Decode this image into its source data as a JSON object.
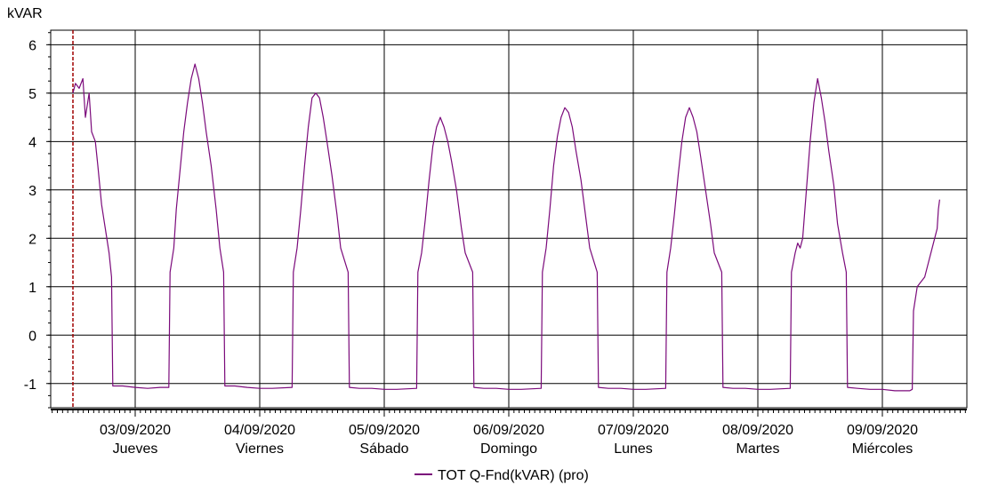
{
  "chart_data": {
    "type": "line",
    "ylabel": "kVAR",
    "ylim": [
      -1.5,
      6.3
    ],
    "y_ticks": [
      "6",
      "5",
      "4",
      "3",
      "2",
      "1",
      "0",
      "-1"
    ],
    "x_ticks": [
      {
        "date": "03/09/2020",
        "day": "Jueves"
      },
      {
        "date": "04/09/2020",
        "day": "Viernes"
      },
      {
        "date": "05/09/2020",
        "day": "Sábado"
      },
      {
        "date": "06/09/2020",
        "day": "Domingo"
      },
      {
        "date": "07/09/2020",
        "day": "Lunes"
      },
      {
        "date": "08/09/2020",
        "day": "Martes"
      },
      {
        "date": "09/09/2020",
        "day": "Miércoles"
      }
    ],
    "grid": true,
    "legend": "bottom",
    "series": [
      {
        "name": "TOT Q-Fnd(kVAR) (pro)",
        "color": "#7b0a7b",
        "x_units": "days from 03/09/2020",
        "points": [
          [
            -0.5,
            5.0
          ],
          [
            -0.48,
            5.2
          ],
          [
            -0.45,
            5.1
          ],
          [
            -0.42,
            5.3
          ],
          [
            -0.4,
            4.5
          ],
          [
            -0.37,
            5.0
          ],
          [
            -0.35,
            4.2
          ],
          [
            -0.32,
            4.0
          ],
          [
            -0.3,
            3.5
          ],
          [
            -0.27,
            2.7
          ],
          [
            -0.24,
            2.2
          ],
          [
            -0.21,
            1.7
          ],
          [
            -0.19,
            1.2
          ],
          [
            -0.18,
            -1.05
          ],
          [
            -0.1,
            -1.05
          ],
          [
            0.0,
            -1.08
          ],
          [
            0.1,
            -1.1
          ],
          [
            0.2,
            -1.08
          ],
          [
            0.27,
            -1.08
          ],
          [
            0.28,
            1.3
          ],
          [
            0.31,
            1.8
          ],
          [
            0.33,
            2.6
          ],
          [
            0.36,
            3.4
          ],
          [
            0.39,
            4.2
          ],
          [
            0.42,
            4.8
          ],
          [
            0.45,
            5.3
          ],
          [
            0.48,
            5.6
          ],
          [
            0.51,
            5.3
          ],
          [
            0.54,
            4.8
          ],
          [
            0.57,
            4.2
          ],
          [
            0.61,
            3.5
          ],
          [
            0.65,
            2.6
          ],
          [
            0.68,
            1.8
          ],
          [
            0.71,
            1.3
          ],
          [
            0.72,
            -1.05
          ],
          [
            0.8,
            -1.05
          ],
          [
            0.9,
            -1.08
          ],
          [
            1.0,
            -1.1
          ],
          [
            1.1,
            -1.1
          ],
          [
            1.26,
            -1.08
          ],
          [
            1.27,
            1.3
          ],
          [
            1.3,
            1.8
          ],
          [
            1.33,
            2.6
          ],
          [
            1.36,
            3.5
          ],
          [
            1.39,
            4.3
          ],
          [
            1.42,
            4.9
          ],
          [
            1.45,
            5.0
          ],
          [
            1.48,
            4.9
          ],
          [
            1.51,
            4.5
          ],
          [
            1.54,
            4.0
          ],
          [
            1.58,
            3.3
          ],
          [
            1.62,
            2.5
          ],
          [
            1.65,
            1.8
          ],
          [
            1.71,
            1.3
          ],
          [
            1.72,
            -1.08
          ],
          [
            1.8,
            -1.1
          ],
          [
            1.9,
            -1.1
          ],
          [
            2.0,
            -1.12
          ],
          [
            2.1,
            -1.12
          ],
          [
            2.26,
            -1.1
          ],
          [
            2.27,
            1.3
          ],
          [
            2.3,
            1.7
          ],
          [
            2.33,
            2.4
          ],
          [
            2.36,
            3.2
          ],
          [
            2.39,
            3.9
          ],
          [
            2.42,
            4.3
          ],
          [
            2.45,
            4.5
          ],
          [
            2.48,
            4.3
          ],
          [
            2.51,
            4.0
          ],
          [
            2.54,
            3.6
          ],
          [
            2.58,
            3.0
          ],
          [
            2.62,
            2.2
          ],
          [
            2.65,
            1.7
          ],
          [
            2.71,
            1.3
          ],
          [
            2.72,
            -1.08
          ],
          [
            2.8,
            -1.1
          ],
          [
            2.9,
            -1.1
          ],
          [
            3.0,
            -1.12
          ],
          [
            3.1,
            -1.12
          ],
          [
            3.26,
            -1.1
          ],
          [
            3.27,
            1.3
          ],
          [
            3.3,
            1.8
          ],
          [
            3.33,
            2.6
          ],
          [
            3.36,
            3.5
          ],
          [
            3.39,
            4.1
          ],
          [
            3.42,
            4.5
          ],
          [
            3.45,
            4.7
          ],
          [
            3.48,
            4.6
          ],
          [
            3.51,
            4.3
          ],
          [
            3.54,
            3.8
          ],
          [
            3.58,
            3.2
          ],
          [
            3.62,
            2.4
          ],
          [
            3.65,
            1.8
          ],
          [
            3.71,
            1.3
          ],
          [
            3.72,
            -1.08
          ],
          [
            3.8,
            -1.1
          ],
          [
            3.9,
            -1.1
          ],
          [
            4.0,
            -1.12
          ],
          [
            4.1,
            -1.12
          ],
          [
            4.26,
            -1.1
          ],
          [
            4.27,
            1.3
          ],
          [
            4.3,
            1.8
          ],
          [
            4.33,
            2.5
          ],
          [
            4.36,
            3.3
          ],
          [
            4.39,
            4.0
          ],
          [
            4.42,
            4.5
          ],
          [
            4.45,
            4.7
          ],
          [
            4.48,
            4.5
          ],
          [
            4.51,
            4.2
          ],
          [
            4.54,
            3.7
          ],
          [
            4.58,
            3.0
          ],
          [
            4.62,
            2.3
          ],
          [
            4.65,
            1.7
          ],
          [
            4.71,
            1.3
          ],
          [
            4.72,
            -1.08
          ],
          [
            4.8,
            -1.1
          ],
          [
            4.9,
            -1.1
          ],
          [
            5.0,
            -1.12
          ],
          [
            5.1,
            -1.12
          ],
          [
            5.26,
            -1.1
          ],
          [
            5.27,
            1.3
          ],
          [
            5.3,
            1.7
          ],
          [
            5.32,
            1.9
          ],
          [
            5.34,
            1.8
          ],
          [
            5.36,
            2.0
          ],
          [
            5.39,
            3.0
          ],
          [
            5.42,
            4.0
          ],
          [
            5.45,
            4.8
          ],
          [
            5.48,
            5.3
          ],
          [
            5.51,
            4.9
          ],
          [
            5.54,
            4.4
          ],
          [
            5.57,
            3.8
          ],
          [
            5.61,
            3.1
          ],
          [
            5.64,
            2.3
          ],
          [
            5.68,
            1.7
          ],
          [
            5.71,
            1.3
          ],
          [
            5.72,
            -1.08
          ],
          [
            5.8,
            -1.1
          ],
          [
            5.9,
            -1.12
          ],
          [
            6.0,
            -1.12
          ],
          [
            6.1,
            -1.15
          ],
          [
            6.22,
            -1.15
          ],
          [
            6.24,
            -1.12
          ],
          [
            6.25,
            0.5
          ],
          [
            6.28,
            1.0
          ],
          [
            6.31,
            1.1
          ],
          [
            6.34,
            1.2
          ],
          [
            6.37,
            1.5
          ],
          [
            6.4,
            1.8
          ],
          [
            6.42,
            2.0
          ],
          [
            6.44,
            2.2
          ],
          [
            6.45,
            2.6
          ],
          [
            6.46,
            2.8
          ]
        ]
      }
    ]
  }
}
